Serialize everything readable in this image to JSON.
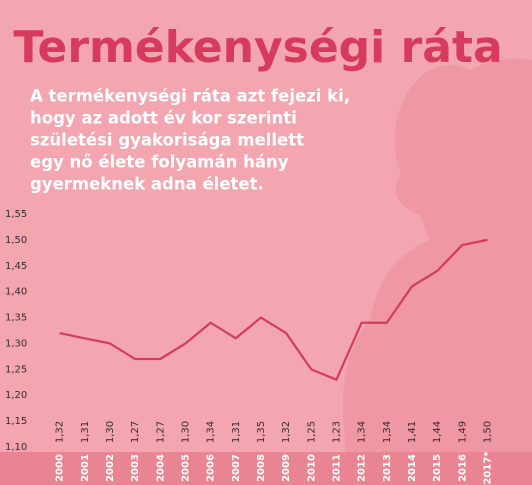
{
  "chart_data": {
    "type": "line",
    "title": "Termékenységi ráta",
    "subtitle": [
      "A termékenységi ráta azt fejezi ki,",
      "hogy az adott év kor szerinti",
      "születési gyakorisága mellett",
      "egy nő élete folyamán hány",
      "gyermeknek adna életet."
    ],
    "categories": [
      "2000",
      "2001",
      "2002",
      "2003",
      "2004",
      "2005",
      "2006",
      "2007",
      "2008",
      "2009",
      "2010",
      "2011",
      "2012",
      "2013",
      "2014",
      "2015",
      "2016",
      "2017*"
    ],
    "values": [
      1.32,
      1.31,
      1.3,
      1.27,
      1.27,
      1.3,
      1.34,
      1.31,
      1.35,
      1.32,
      1.25,
      1.23,
      1.34,
      1.34,
      1.41,
      1.44,
      1.49,
      1.5
    ],
    "value_labels": [
      "1,32",
      "1,31",
      "1,30",
      "1,27",
      "1,27",
      "1,30",
      "1,34",
      "1,31",
      "1,35",
      "1,32",
      "1,25",
      "1,23",
      "1,34",
      "1,34",
      "1,41",
      "1,44",
      "1,49",
      "1,50"
    ],
    "color": "#d23d5c",
    "ylim": [
      1.1,
      1.55
    ],
    "yticks": [
      {
        "value": 1.1,
        "label": "1,10"
      },
      {
        "value": 1.15,
        "label": "1,15"
      },
      {
        "value": 1.2,
        "label": "1,20"
      },
      {
        "value": 1.25,
        "label": "1,25"
      },
      {
        "value": 1.3,
        "label": "1,30"
      },
      {
        "value": 1.35,
        "label": "1,35"
      },
      {
        "value": 1.4,
        "label": "1,40"
      },
      {
        "value": 1.45,
        "label": "1,45"
      },
      {
        "value": 1.5,
        "label": "1,50"
      },
      {
        "value": 1.55,
        "label": "1,55"
      }
    ],
    "grid": false
  }
}
